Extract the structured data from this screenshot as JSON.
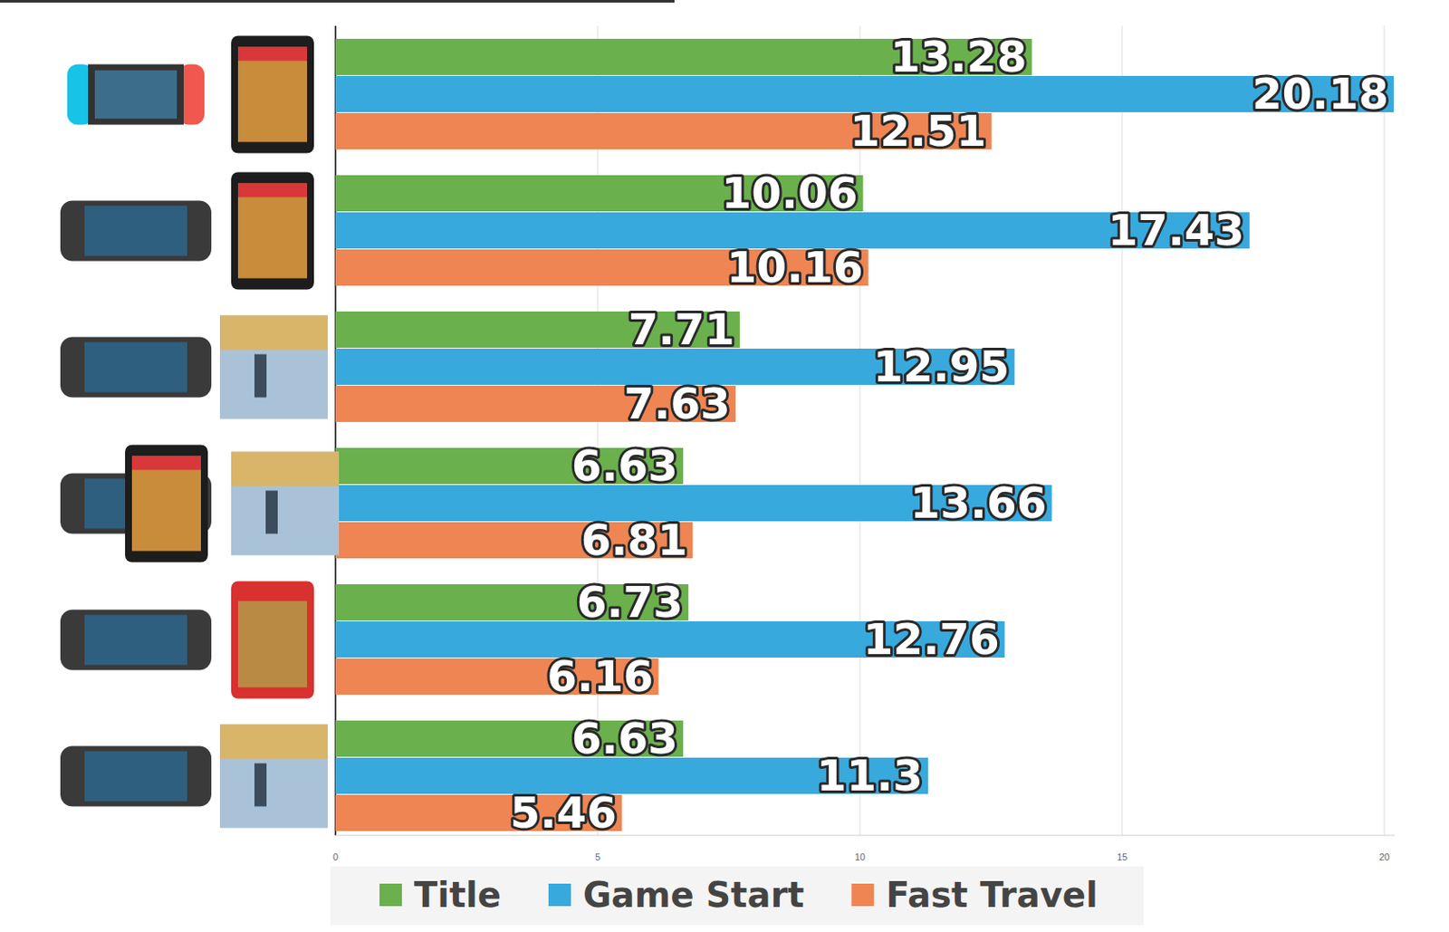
{
  "chart_data": {
    "type": "bar",
    "orientation": "horizontal",
    "categories": [
      null,
      null,
      null,
      null,
      null,
      null
    ],
    "series": [
      {
        "name": "Title",
        "color": "#6ab04c",
        "values": [
          13.28,
          10.06,
          7.71,
          6.63,
          6.73,
          6.63
        ]
      },
      {
        "name": "Game Start",
        "color": "#38a9dd",
        "values": [
          20.18,
          17.43,
          12.95,
          13.66,
          12.76,
          11.3
        ]
      },
      {
        "name": "Fast Travel",
        "color": "#ee8553",
        "values": [
          12.51,
          10.16,
          7.63,
          6.81,
          6.16,
          5.46
        ]
      }
    ],
    "xlim": [
      0,
      20.2
    ],
    "xticks": [
      0,
      5,
      10,
      15,
      20
    ],
    "grid": true,
    "data_labels": true,
    "legend": "bottom"
  }
}
